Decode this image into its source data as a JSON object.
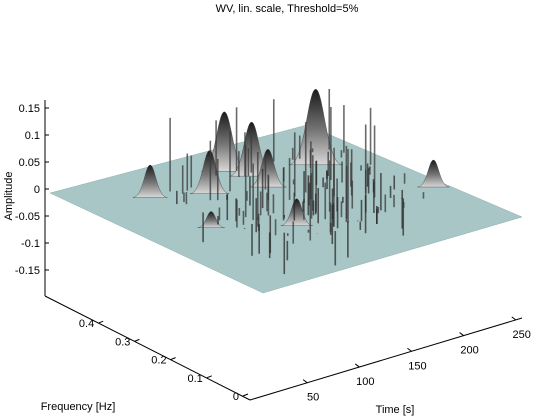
{
  "chart_data": {
    "type": "surface",
    "title": "WV, lin. scale, Threshold=5%",
    "xlabel": "Time [s]",
    "ylabel": "Frequency [Hz]",
    "zlabel": "Amplitude",
    "x_ticks": [
      "50",
      "100",
      "150",
      "200",
      "250"
    ],
    "y_ticks": [
      "0",
      "0.1",
      "0.2",
      "0.3",
      "0.4"
    ],
    "z_ticks": [
      "0.15",
      "0.1",
      "0.05",
      "0",
      "-0.05",
      "-0.1",
      "-0.15"
    ],
    "xlim": [
      1,
      256
    ],
    "ylim": [
      0,
      0.5
    ],
    "zlim": [
      -0.18,
      0.18
    ],
    "threshold_percent": 5,
    "plane_color": "#a9c6c6",
    "surface_colormap": "gray",
    "grid": false,
    "peaks": [
      {
        "time": 58,
        "freq": 0.4,
        "amplitude": 0.06
      },
      {
        "time": 100,
        "freq": 0.36,
        "amplitude": 0.08
      },
      {
        "time": 55,
        "freq": 0.25,
        "amplitude": 0.03
      },
      {
        "time": 140,
        "freq": 0.42,
        "amplitude": 0.11
      },
      {
        "time": 150,
        "freq": 0.38,
        "amplitude": 0.1
      },
      {
        "time": 205,
        "freq": 0.36,
        "amplitude": 0.14
      },
      {
        "time": 145,
        "freq": 0.33,
        "amplitude": 0.07
      },
      {
        "time": 110,
        "freq": 0.18,
        "amplitude": 0.05
      },
      {
        "time": 245,
        "freq": 0.18,
        "amplitude": 0.05
      }
    ]
  }
}
